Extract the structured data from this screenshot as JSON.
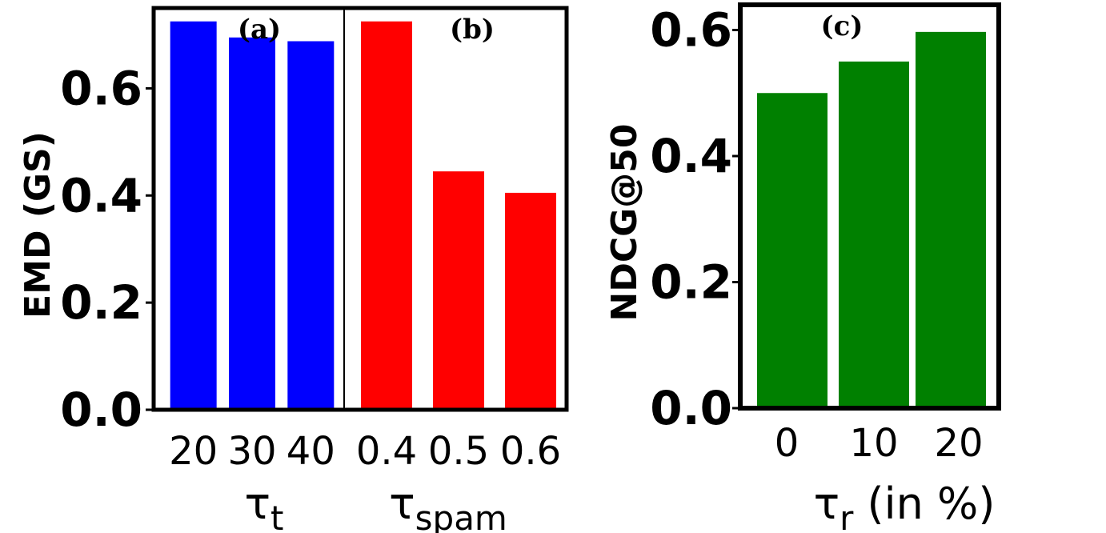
{
  "chart_data": [
    {
      "type": "bar",
      "panel_tag": "(a)",
      "ylabel": "EMD (GS)",
      "xlabel": "τ",
      "xlabel_sub": "t",
      "categories": [
        "20",
        "30",
        "40"
      ],
      "values": [
        0.725,
        0.695,
        0.688
      ],
      "ylim": [
        0.0,
        0.75
      ],
      "yticks": [
        "0.0",
        "0.2",
        "0.4",
        "0.6"
      ],
      "color": "#0000ff"
    },
    {
      "type": "bar",
      "panel_tag": "(b)",
      "xlabel": "τ",
      "xlabel_sub": "spam",
      "categories": [
        "0.4",
        "0.5",
        "0.6"
      ],
      "values": [
        0.725,
        0.445,
        0.405
      ],
      "ylim": [
        0.0,
        0.75
      ],
      "color": "#ff0000"
    },
    {
      "type": "bar",
      "panel_tag": "(c)",
      "ylabel": "NDCG@50",
      "xlabel": "τ",
      "xlabel_sub": "r",
      "xlabel_suffix": " (in %)",
      "categories": [
        "0",
        "10",
        "20"
      ],
      "values": [
        0.5,
        0.55,
        0.597
      ],
      "ylim": [
        0.0,
        0.64
      ],
      "yticks": [
        "0.0",
        "0.2",
        "0.4",
        "0.6"
      ],
      "color": "#008000"
    }
  ]
}
